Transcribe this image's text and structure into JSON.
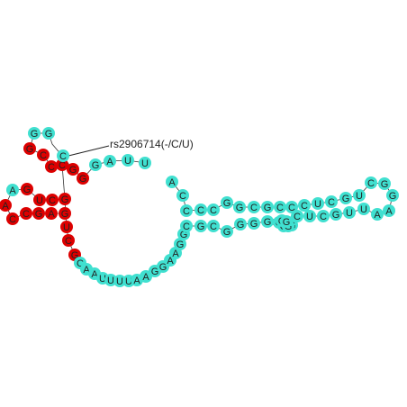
{
  "colors": {
    "normal": "#40e0d0",
    "variant": "#dd0000",
    "text": "#222222"
  },
  "annotation": {
    "label": "rs2906714(-/C/U)"
  },
  "sequence": [
    {
      "base": "G",
      "variant": false
    },
    {
      "base": "G",
      "variant": false
    },
    {
      "base": "G",
      "variant": true
    },
    {
      "base": "C",
      "variant": true
    },
    {
      "base": "C",
      "variant": true
    },
    {
      "base": "C",
      "variant": true
    },
    {
      "base": "G",
      "variant": true
    },
    {
      "base": "G",
      "variant": true
    },
    {
      "base": "C",
      "variant": false
    },
    {
      "base": "G",
      "variant": false
    },
    {
      "base": "A",
      "variant": false
    },
    {
      "base": "U",
      "variant": false
    },
    {
      "base": "U",
      "variant": false
    },
    {
      "base": "A",
      "variant": false
    },
    {
      "base": "G",
      "variant": true
    },
    {
      "base": "U",
      "variant": true
    },
    {
      "base": "C",
      "variant": true
    },
    {
      "base": "G",
      "variant": true
    },
    {
      "base": "A",
      "variant": true
    },
    {
      "base": "C",
      "variant": true
    },
    {
      "base": "C",
      "variant": true
    },
    {
      "base": "G",
      "variant": true
    },
    {
      "base": "A",
      "variant": true
    },
    {
      "base": "G",
      "variant": true
    },
    {
      "base": "U",
      "variant": true
    },
    {
      "base": "C",
      "variant": true
    },
    {
      "base": "G",
      "variant": true
    },
    {
      "base": "C",
      "variant": false
    },
    {
      "base": "A",
      "variant": false
    },
    {
      "base": "A",
      "variant": false
    },
    {
      "base": "U",
      "variant": false
    },
    {
      "base": "U",
      "variant": false
    },
    {
      "base": "U",
      "variant": false
    },
    {
      "base": "U",
      "variant": false
    },
    {
      "base": "A",
      "variant": false
    },
    {
      "base": "A",
      "variant": false
    },
    {
      "base": "G",
      "variant": false
    },
    {
      "base": "G",
      "variant": false
    },
    {
      "base": "A",
      "variant": false
    },
    {
      "base": "A",
      "variant": false
    },
    {
      "base": "G",
      "variant": false
    },
    {
      "base": "G",
      "variant": false
    },
    {
      "base": "A",
      "variant": false
    },
    {
      "base": "C",
      "variant": false
    },
    {
      "base": "C",
      "variant": false
    },
    {
      "base": "C",
      "variant": false
    },
    {
      "base": "C",
      "variant": false
    },
    {
      "base": "G",
      "variant": false
    },
    {
      "base": "G",
      "variant": false
    },
    {
      "base": "C",
      "variant": false
    },
    {
      "base": "G",
      "variant": false
    },
    {
      "base": "C",
      "variant": false
    },
    {
      "base": "C",
      "variant": false
    },
    {
      "base": "C",
      "variant": false
    },
    {
      "base": "U",
      "variant": false
    },
    {
      "base": "C",
      "variant": false
    },
    {
      "base": "G",
      "variant": false
    },
    {
      "base": "U",
      "variant": false
    },
    {
      "base": "C",
      "variant": false
    },
    {
      "base": "G",
      "variant": false
    },
    {
      "base": "G",
      "variant": false
    },
    {
      "base": "A",
      "variant": false
    },
    {
      "base": "A",
      "variant": false
    },
    {
      "base": "U",
      "variant": false
    },
    {
      "base": "U",
      "variant": false
    },
    {
      "base": "G",
      "variant": false
    },
    {
      "base": "C",
      "variant": false
    },
    {
      "base": "U",
      "variant": false
    },
    {
      "base": "C",
      "variant": false
    },
    {
      "base": "C",
      "variant": false
    },
    {
      "base": "G",
      "variant": false
    },
    {
      "base": "C",
      "variant": false
    },
    {
      "base": "G",
      "variant": false
    },
    {
      "base": "G",
      "variant": false
    },
    {
      "base": "G",
      "variant": false
    },
    {
      "base": "G",
      "variant": false
    },
    {
      "base": "G",
      "variant": false
    },
    {
      "base": "U",
      "variant": false
    },
    {
      "base": "G",
      "variant": false
    },
    {
      "base": "G",
      "variant": false
    },
    {
      "base": "G",
      "variant": false
    },
    {
      "base": "G",
      "variant": false
    },
    {
      "base": "G",
      "variant": false
    },
    {
      "base": "C",
      "variant": false
    }
  ]
}
